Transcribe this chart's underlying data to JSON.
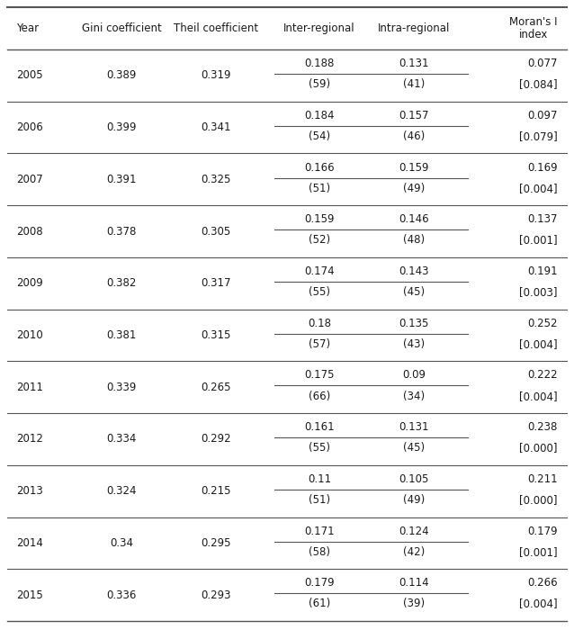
{
  "headers": [
    "Year",
    "Gini coefficient",
    "Theil coefficient",
    "Inter-regional",
    "Intra-regional",
    "Moran's I\nindex"
  ],
  "rows": [
    {
      "year": "2005",
      "gini": "0.389",
      "theil": "0.319",
      "inter": "0.188",
      "intra": "0.131",
      "inter_pct": "(59)",
      "intra_pct": "(41)",
      "morans": "0.077",
      "morans_p": "[0.084]"
    },
    {
      "year": "2006",
      "gini": "0.399",
      "theil": "0.341",
      "inter": "0.184",
      "intra": "0.157",
      "inter_pct": "(54)",
      "intra_pct": "(46)",
      "morans": "0.097",
      "morans_p": "[0.079]"
    },
    {
      "year": "2007",
      "gini": "0.391",
      "theil": "0.325",
      "inter": "0.166",
      "intra": "0.159",
      "inter_pct": "(51)",
      "intra_pct": "(49)",
      "morans": "0.169",
      "morans_p": "[0.004]"
    },
    {
      "year": "2008",
      "gini": "0.378",
      "theil": "0.305",
      "inter": "0.159",
      "intra": "0.146",
      "inter_pct": "(52)",
      "intra_pct": "(48)",
      "morans": "0.137",
      "morans_p": "[0.001]"
    },
    {
      "year": "2009",
      "gini": "0.382",
      "theil": "0.317",
      "inter": "0.174",
      "intra": "0.143",
      "inter_pct": "(55)",
      "intra_pct": "(45)",
      "morans": "0.191",
      "morans_p": "[0.003]"
    },
    {
      "year": "2010",
      "gini": "0.381",
      "theil": "0.315",
      "inter": "0.18",
      "intra": "0.135",
      "inter_pct": "(57)",
      "intra_pct": "(43)",
      "morans": "0.252",
      "morans_p": "[0.004]"
    },
    {
      "year": "2011",
      "gini": "0.339",
      "theil": "0.265",
      "inter": "0.175",
      "intra": "0.09",
      "inter_pct": "(66)",
      "intra_pct": "(34)",
      "morans": "0.222",
      "morans_p": "[0.004]"
    },
    {
      "year": "2012",
      "gini": "0.334",
      "theil": "0.292",
      "inter": "0.161",
      "intra": "0.131",
      "inter_pct": "(55)",
      "intra_pct": "(45)",
      "morans": "0.238",
      "morans_p": "[0.000]"
    },
    {
      "year": "2013",
      "gini": "0.324",
      "theil": "0.215",
      "inter": "0.11",
      "intra": "0.105",
      "inter_pct": "(51)",
      "intra_pct": "(49)",
      "morans": "0.211",
      "morans_p": "[0.000]"
    },
    {
      "year": "2014",
      "gini": "0.34",
      "theil": "0.295",
      "inter": "0.171",
      "intra": "0.124",
      "inter_pct": "(58)",
      "intra_pct": "(42)",
      "morans": "0.179",
      "morans_p": "[0.001]"
    },
    {
      "year": "2015",
      "gini": "0.336",
      "theil": "0.293",
      "inter": "0.179",
      "intra": "0.114",
      "inter_pct": "(61)",
      "intra_pct": "(39)",
      "morans": "0.266",
      "morans_p": "[0.004]"
    }
  ],
  "font_size": 8.5,
  "header_font_size": 8.5,
  "text_color": "#1a1a1a",
  "line_color": "#555555",
  "bg_color": "#ffffff"
}
